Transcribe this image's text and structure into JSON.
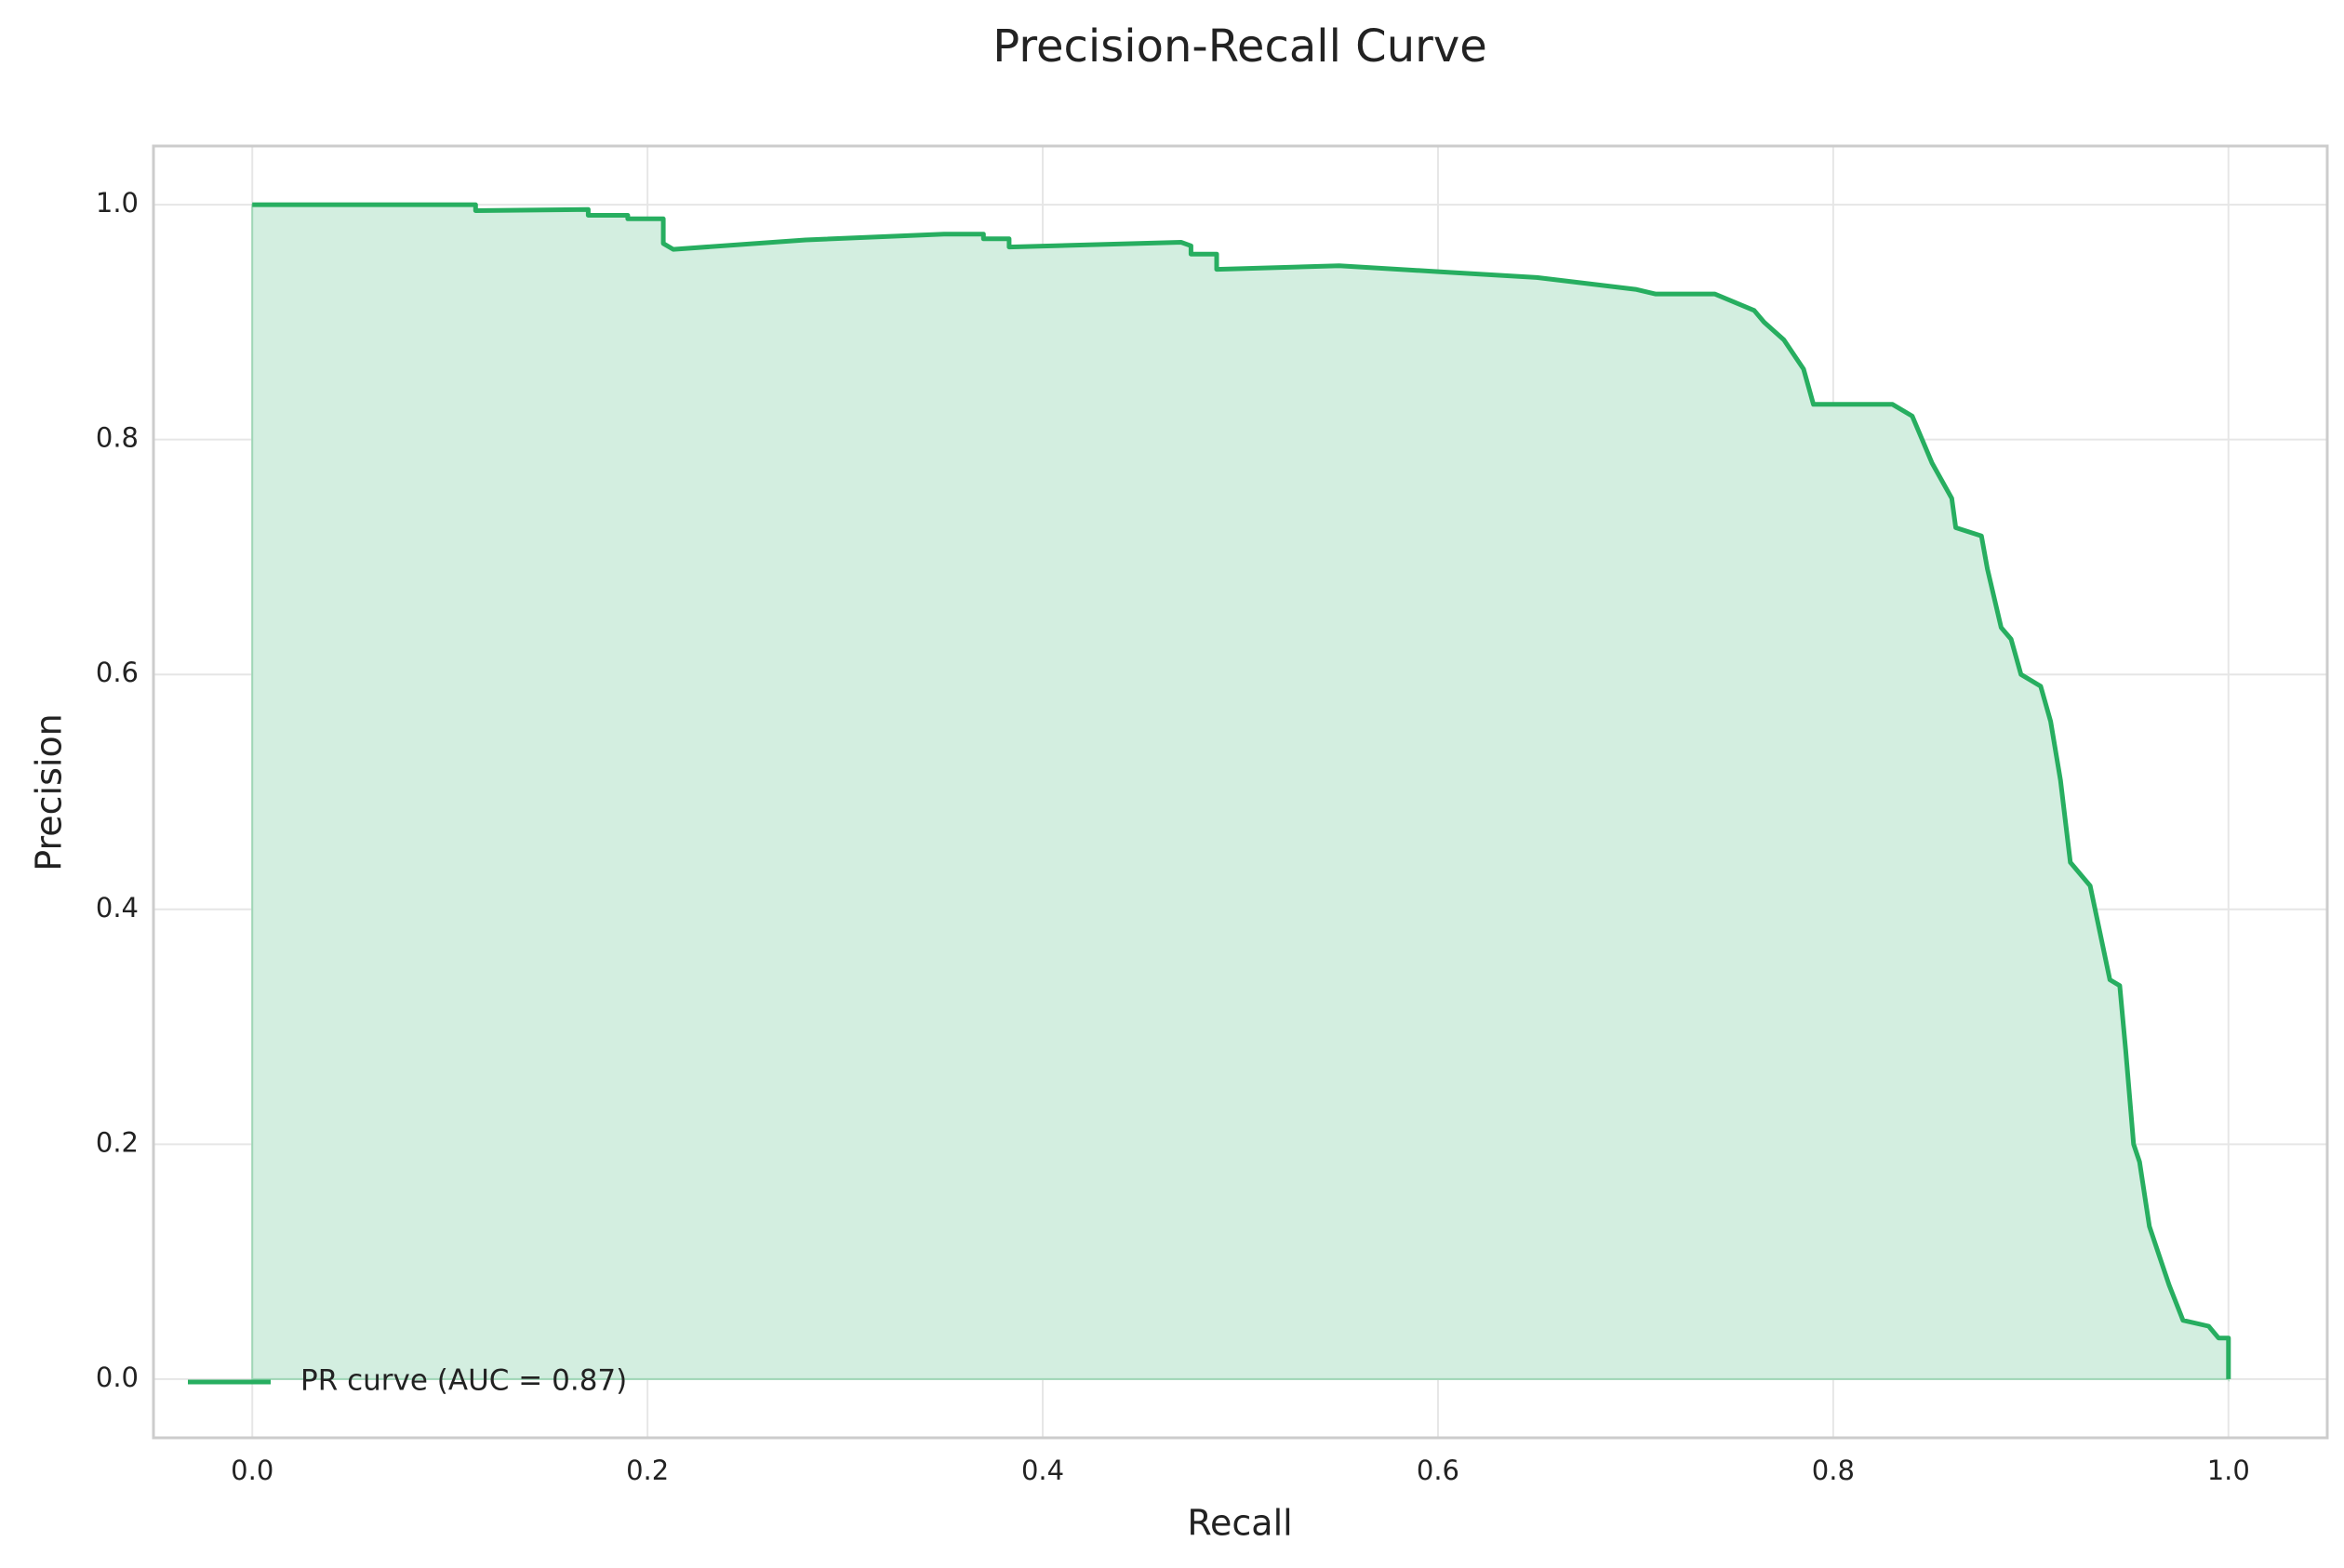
{
  "chart_data": {
    "type": "line",
    "title": "Precision-Recall Curve",
    "xlabel": "Recall",
    "ylabel": "Precision",
    "x": [
      0,
      0.113,
      0.113,
      0.17,
      0.17,
      0.19,
      0.19,
      0.208,
      0.208,
      0.213,
      0.28,
      0.35,
      0.37,
      0.37,
      0.383,
      0.383,
      0.47,
      0.475,
      0.475,
      0.488,
      0.488,
      0.55,
      0.6,
      0.65,
      0.7,
      0.71,
      0.74,
      0.76,
      0.765,
      0.775,
      0.785,
      0.79,
      0.83,
      0.84,
      0.845,
      0.85,
      0.86,
      0.862,
      0.875,
      0.878,
      0.885,
      0.89,
      0.895,
      0.905,
      0.91,
      0.915,
      0.92,
      0.93,
      0.935,
      0.94,
      0.945,
      0.948,
      0.952,
      0.955,
      0.96,
      0.965,
      0.97,
      0.977,
      0.99,
      0.995,
      1.0,
      1.0
    ],
    "series": [
      {
        "name": "PR curve (AUC = 0.87)",
        "color": "#27ae60",
        "fill_color": "#d3eee0",
        "values": [
          1.0,
          1.0,
          0.995,
          0.996,
          0.991,
          0.991,
          0.988,
          0.988,
          0.967,
          0.962,
          0.97,
          0.975,
          0.975,
          0.971,
          0.971,
          0.964,
          0.968,
          0.965,
          0.958,
          0.958,
          0.945,
          0.948,
          0.943,
          0.938,
          0.928,
          0.924,
          0.924,
          0.91,
          0.9,
          0.885,
          0.86,
          0.83,
          0.83,
          0.82,
          0.8,
          0.78,
          0.75,
          0.725,
          0.718,
          0.69,
          0.64,
          0.63,
          0.6,
          0.59,
          0.56,
          0.51,
          0.44,
          0.42,
          0.38,
          0.34,
          0.335,
          0.28,
          0.2,
          0.185,
          0.13,
          0.105,
          0.08,
          0.05,
          0.045,
          0.035,
          0.035,
          0.0
        ]
      }
    ],
    "fill": true,
    "xlim": [
      -0.05,
      1.05
    ],
    "ylim": [
      -0.05,
      1.05
    ],
    "xticks": [
      {
        "value": 0,
        "label": "0.0"
      },
      0.2,
      0.4,
      0.6,
      0.8,
      {
        "value": 1,
        "label": "1.0"
      }
    ],
    "yticks": [
      {
        "value": 0,
        "label": "0.0"
      },
      0.2,
      0.4,
      0.6,
      0.8,
      {
        "value": 1,
        "label": "1.0"
      }
    ],
    "grid": true,
    "legend": "lower left"
  }
}
